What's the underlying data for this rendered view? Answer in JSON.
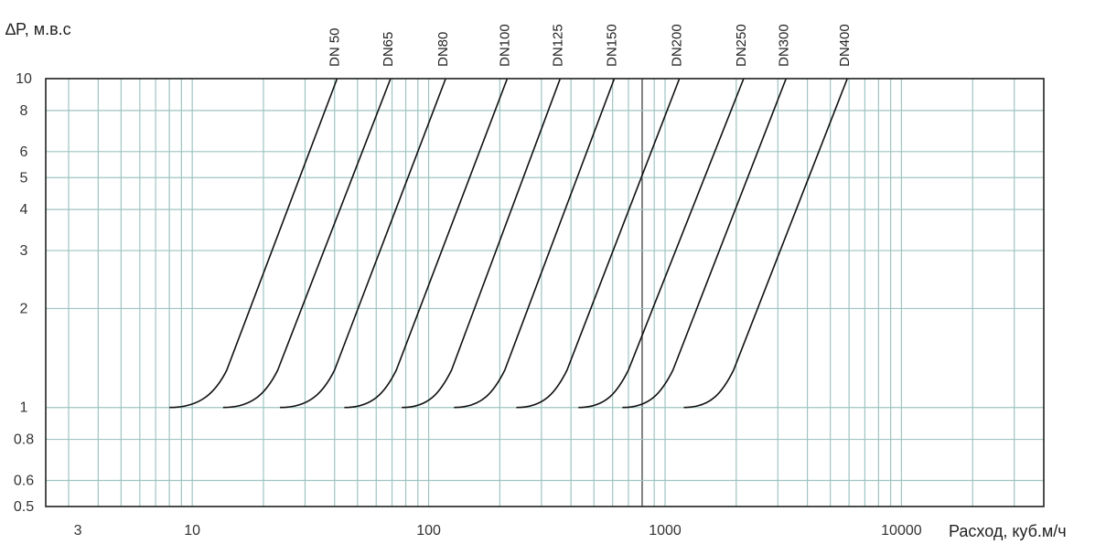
{
  "chart_data": {
    "type": "line",
    "title": "",
    "ylabel": "∆P, м.в.с",
    "xlabel": "Расход, куб.м/ч",
    "x_scale": "log",
    "y_scale": "log",
    "xlim": [
      2.4,
      40000
    ],
    "ylim": [
      0.5,
      10
    ],
    "grid": true,
    "x_ticks": [
      3,
      10,
      100,
      1000,
      10000
    ],
    "x_tick_labels": [
      "3",
      "10",
      "100",
      "1000",
      "10000"
    ],
    "y_ticks": [
      0.5,
      0.6,
      0.8,
      1,
      2,
      3,
      4,
      5,
      6,
      8,
      10
    ],
    "y_tick_labels": [
      "0.5",
      "0.6",
      "0.8",
      "1",
      "2",
      "3",
      "4",
      "5",
      "6",
      "8",
      "10"
    ],
    "colors": {
      "grid": "#9ec4c1",
      "curve": "#111111",
      "frame": "#222222"
    },
    "series": [
      {
        "name": "DN 50",
        "x": [
          8,
          14,
          41
        ],
        "y": [
          1,
          1.3,
          10
        ]
      },
      {
        "name": "DN65",
        "x": [
          13.5,
          23,
          69
        ],
        "y": [
          1,
          1.3,
          10
        ]
      },
      {
        "name": "DN80",
        "x": [
          23.5,
          40,
          118
        ],
        "y": [
          1,
          1.3,
          10
        ]
      },
      {
        "name": "DN100",
        "x": [
          44,
          73,
          215
        ],
        "y": [
          1,
          1.3,
          10
        ]
      },
      {
        "name": "DN125",
        "x": [
          77,
          125,
          360
        ],
        "y": [
          1,
          1.3,
          10
        ]
      },
      {
        "name": "DN150",
        "x": [
          128,
          210,
          610
        ],
        "y": [
          1,
          1.3,
          10
        ]
      },
      {
        "name": "DN200",
        "x": [
          235,
          385,
          1150
        ],
        "y": [
          1,
          1.3,
          10
        ]
      },
      {
        "name": "DN250",
        "x": [
          430,
          700,
          2150
        ],
        "y": [
          1,
          1.3,
          10
        ]
      },
      {
        "name": "DN300",
        "x": [
          660,
          1080,
          3250
        ],
        "y": [
          1,
          1.3,
          10
        ]
      },
      {
        "name": "DN400",
        "x": [
          1200,
          1950,
          5900
        ],
        "y": [
          1,
          1.3,
          10
        ]
      }
    ]
  }
}
